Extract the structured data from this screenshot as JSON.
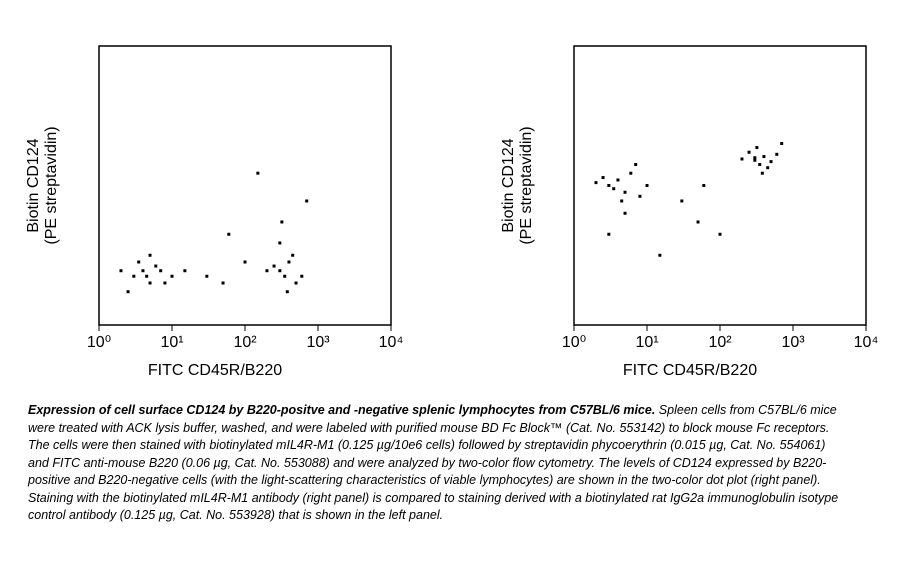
{
  "chart_data": [
    {
      "type": "scatter",
      "xlabel": "FITC CD45R/B220",
      "ylabel": [
        "Biotin CD124",
        "(PE streptavidin)"
      ],
      "xlog": true,
      "ylog": true,
      "xlim": [
        1,
        10000
      ],
      "ylim": [
        1,
        10000
      ],
      "xticks": [
        {
          "value": 1,
          "label": "10⁰"
        },
        {
          "value": 10,
          "label": "10¹"
        },
        {
          "value": 100,
          "label": "10²"
        },
        {
          "value": 1000,
          "label": "10³"
        },
        {
          "value": 10000,
          "label": "10⁴"
        }
      ],
      "color": "#000000",
      "x": [
        3,
        4,
        5,
        6,
        3.5,
        4.5,
        2,
        8,
        10,
        2.5,
        5,
        7,
        300,
        400,
        350,
        250,
        500,
        450,
        300,
        380,
        200,
        600,
        320,
        30,
        50,
        100,
        15,
        700,
        150,
        60
      ],
      "y": [
        5,
        6,
        4,
        7,
        8,
        5,
        6,
        4,
        5,
        3,
        10,
        6,
        6,
        8,
        5,
        7,
        4,
        10,
        15,
        3,
        6,
        5,
        30,
        5,
        4,
        8,
        6,
        60,
        150,
        20
      ]
    },
    {
      "type": "scatter",
      "xlabel": "FITC CD45R/B220",
      "ylabel": [
        "Biotin CD124",
        "(PE streptavidin)"
      ],
      "xlog": true,
      "ylog": true,
      "xlim": [
        1,
        10000
      ],
      "ylim": [
        1,
        10000
      ],
      "xticks": [
        {
          "value": 1,
          "label": "10⁰"
        },
        {
          "value": 10,
          "label": "10¹"
        },
        {
          "value": 100,
          "label": "10²"
        },
        {
          "value": 1000,
          "label": "10³"
        },
        {
          "value": 10000,
          "label": "10⁴"
        }
      ],
      "color": "#000000",
      "x": [
        3,
        4,
        5,
        6,
        3.5,
        4.5,
        2,
        8,
        10,
        2.5,
        5,
        7,
        300,
        400,
        350,
        250,
        500,
        450,
        300,
        380,
        200,
        600,
        320,
        30,
        50,
        100,
        15,
        700,
        3,
        60
      ],
      "y": [
        100,
        120,
        80,
        150,
        90,
        60,
        110,
        70,
        100,
        130,
        40,
        200,
        230,
        260,
        200,
        300,
        220,
        180,
        250,
        150,
        240,
        280,
        350,
        60,
        30,
        20,
        10,
        400,
        20,
        100
      ]
    }
  ],
  "caption": {
    "title": "Expression of cell surface CD124 by B220-positve and -negative splenic lymphocytes from C57BL/6 mice.",
    "text": "Spleen cells from C57BL/6 mice were treated with ACK lysis buffer, washed, and were labeled with purified mouse BD Fc Block™ (Cat. No. 553142) to block mouse Fc receptors. The cells were then stained with biotinylated mIL4R-M1 (0.125 µg/10e6 cells) followed by streptavidin  phycoerythrin (0.015 µg, Cat. No. 554061) and FITC anti-mouse B220 (0.06 µg, Cat. No. 553088) and were analyzed by two-color flow cytometry. The levels of CD124 expressed by B220-positive and B220-negative cells (with the light-scattering characteristics of viable lymphocytes) are shown in the two-color dot plot (right panel). Staining with the biotinylated mIL4R-M1 antibody (right panel) is compared to staining derived with a biotinylated rat IgG2a immunoglobulin isotype control antibody (0.125 µg, Cat. No. 553928) that is shown in the left panel."
  }
}
